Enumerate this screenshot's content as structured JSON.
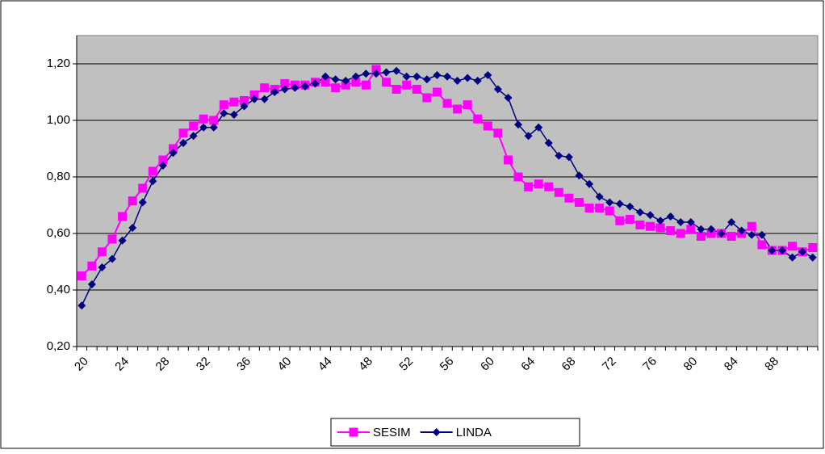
{
  "chart_data": {
    "type": "line",
    "categories": [
      "20",
      null,
      null,
      null,
      "24",
      null,
      null,
      null,
      "28",
      null,
      null,
      null,
      "32",
      null,
      null,
      null,
      "36",
      null,
      null,
      null,
      "40",
      null,
      null,
      null,
      "44",
      null,
      null,
      null,
      "48",
      null,
      null,
      null,
      "52",
      null,
      null,
      null,
      "56",
      null,
      null,
      null,
      "60",
      null,
      null,
      null,
      "64",
      null,
      null,
      null,
      "68",
      null,
      null,
      null,
      "72",
      null,
      null,
      null,
      "76",
      null,
      null,
      null,
      "80",
      null,
      null,
      null,
      "84",
      null,
      null,
      null,
      "88",
      null,
      null,
      null,
      null
    ],
    "series": [
      {
        "name": "SESIM",
        "color": "#ff00ff",
        "marker": "square",
        "values": [
          0.45,
          0.485,
          0.535,
          0.58,
          0.66,
          0.715,
          0.76,
          0.82,
          0.86,
          0.9,
          0.955,
          0.98,
          1.005,
          1.0,
          1.055,
          1.065,
          1.07,
          1.09,
          1.115,
          1.11,
          1.13,
          1.125,
          1.125,
          1.135,
          1.135,
          1.115,
          1.125,
          1.135,
          1.125,
          1.18,
          1.135,
          1.11,
          1.125,
          1.11,
          1.08,
          1.1,
          1.06,
          1.04,
          1.055,
          1.005,
          0.98,
          0.955,
          0.86,
          0.8,
          0.765,
          0.775,
          0.765,
          0.745,
          0.725,
          0.71,
          0.69,
          0.69,
          0.68,
          0.645,
          0.65,
          0.63,
          0.625,
          0.62,
          0.61,
          0.6,
          0.615,
          0.59,
          0.6,
          0.6,
          0.59,
          0.6,
          0.625,
          0.56,
          0.54,
          0.54,
          0.555,
          0.535,
          0.55
        ]
      },
      {
        "name": "LINDA",
        "color": "#000080",
        "marker": "diamond",
        "values": [
          0.345,
          0.42,
          0.48,
          0.51,
          0.575,
          0.62,
          0.71,
          0.785,
          0.84,
          0.885,
          0.92,
          0.945,
          0.975,
          0.975,
          1.025,
          1.02,
          1.05,
          1.075,
          1.075,
          1.1,
          1.11,
          1.115,
          1.12,
          1.13,
          1.155,
          1.145,
          1.14,
          1.155,
          1.165,
          1.165,
          1.17,
          1.175,
          1.155,
          1.155,
          1.145,
          1.16,
          1.155,
          1.14,
          1.15,
          1.14,
          1.16,
          1.11,
          1.08,
          0.985,
          0.945,
          0.975,
          0.92,
          0.875,
          0.87,
          0.805,
          0.775,
          0.73,
          0.71,
          0.705,
          0.695,
          0.675,
          0.665,
          0.645,
          0.66,
          0.64,
          0.64,
          0.615,
          0.615,
          0.6,
          0.64,
          0.61,
          0.595,
          0.595,
          0.54,
          0.54,
          0.515,
          0.535,
          0.515
        ]
      }
    ],
    "ylim": [
      0.2,
      1.3
    ],
    "yticks": [
      {
        "value": 0.2,
        "label": "0,20"
      },
      {
        "value": 0.4,
        "label": "0,40"
      },
      {
        "value": 0.6,
        "label": "0,60"
      },
      {
        "value": 0.8,
        "label": "0,80"
      },
      {
        "value": 1.0,
        "label": "1,00"
      },
      {
        "value": 1.2,
        "label": "1,20"
      }
    ],
    "grid": true,
    "plot_background": "#c0c0c0",
    "legend": "bottom"
  }
}
